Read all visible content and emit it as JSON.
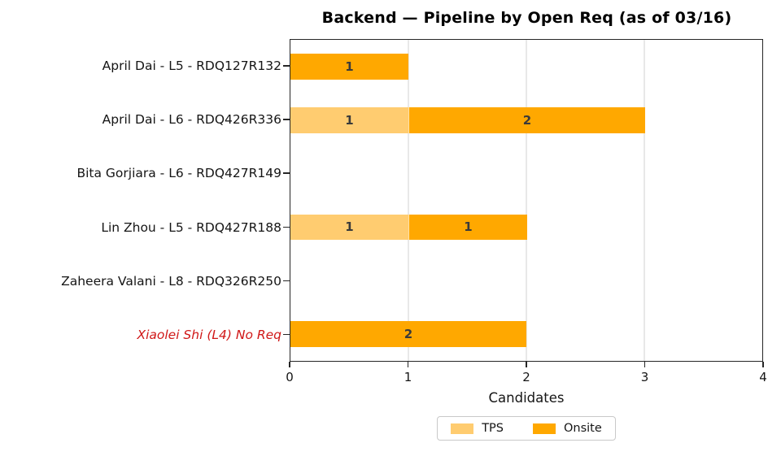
{
  "title": "Backend — Pipeline by Open Req (as of 03/16)",
  "colors": {
    "tps": "#FFCC70",
    "onsite": "#FFA800",
    "highlight_text": "#D01717",
    "gridline": "#E8E8E8",
    "spine": "#262626",
    "bar_value_label": "#3A3A3A"
  },
  "chart_data": {
    "type": "bar",
    "orientation": "horizontal",
    "stacked": true,
    "title": "Backend — Pipeline by Open Req (as of 03/16)",
    "xlabel": "Candidates",
    "xlim": [
      0,
      4
    ],
    "xticks": [
      0,
      1,
      2,
      3,
      4
    ],
    "grid": "vertical-at-xticks",
    "legend_position": "bottom-center",
    "categories": [
      "April Dai - L5 - RDQ127R132",
      "April Dai - L6 - RDQ426R336",
      "Bita Gorjiara - L6 - RDQ427R149",
      "Lin Zhou - L5 - RDQ427R188",
      "Zaheera Valani - L8 - RDQ326R250",
      "Xiaolei Shi (L4) No Req"
    ],
    "highlight_category": {
      "index": 5,
      "color": "#D01717",
      "font_style": "italic"
    },
    "series": [
      {
        "name": "TPS",
        "color": "#FFCC70",
        "values": [
          0,
          1,
          0,
          1,
          0,
          0
        ]
      },
      {
        "name": "Onsite",
        "color": "#FFA800",
        "values": [
          1,
          2,
          0,
          1,
          0,
          2
        ]
      }
    ],
    "bar_value_labels": true
  }
}
